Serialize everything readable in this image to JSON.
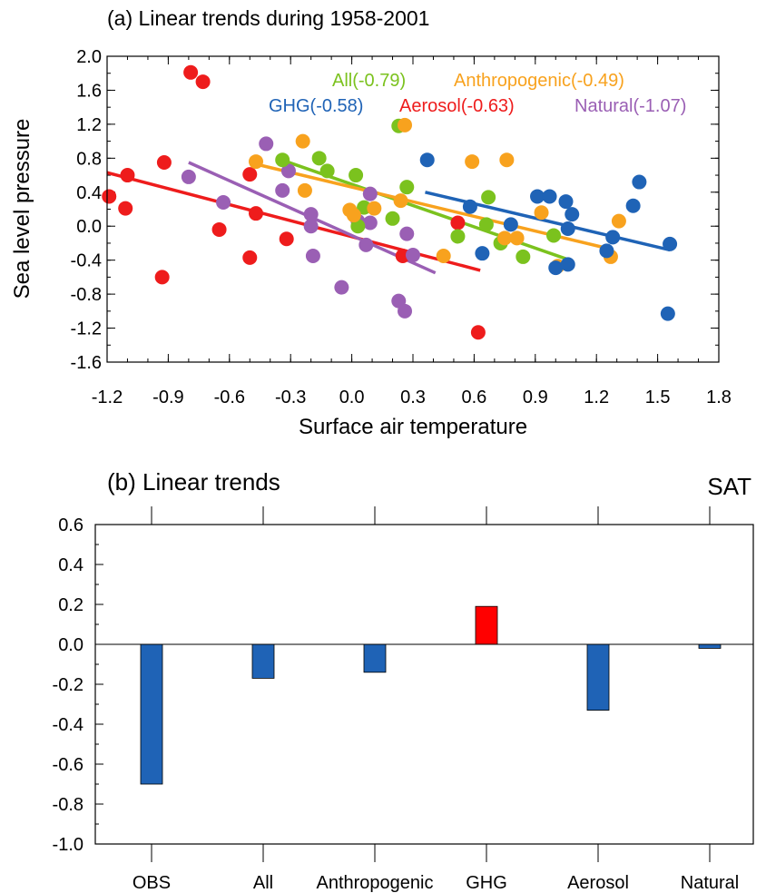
{
  "chart_data": [
    {
      "type": "scatter",
      "title": "(a) Linear trends during 1958-2001",
      "xlabel": "Surface air temperature",
      "ylabel": "Sea level pressure",
      "xlim": [
        -1.2,
        1.8
      ],
      "ylim": [
        -1.6,
        2.0
      ],
      "xticks": [
        "-1.2",
        "-0.9",
        "-0.6",
        "-0.3",
        "0.0",
        "0.3",
        "0.6",
        "0.9",
        "1.2",
        "1.5",
        "1.8"
      ],
      "yticks": [
        "2.0",
        "1.6",
        "1.2",
        "0.8",
        "0.4",
        "0.0",
        "-0.4",
        "-0.8",
        "-1.2",
        "-1.6"
      ],
      "grid": false,
      "legend": "in-plot labels, top",
      "series": [
        {
          "name": "Aerosol",
          "label": "Aerosol(-0.63)",
          "color": "#ee1c1c",
          "points": [
            [
              -1.19,
              0.35
            ],
            [
              -1.11,
              0.21
            ],
            [
              -1.1,
              0.6
            ],
            [
              -0.93,
              -0.6
            ],
            [
              -0.92,
              0.75
            ],
            [
              -0.79,
              1.81
            ],
            [
              -0.73,
              1.7
            ],
            [
              -0.65,
              -0.04
            ],
            [
              -0.5,
              0.61
            ],
            [
              -0.5,
              -0.37
            ],
            [
              -0.47,
              0.15
            ],
            [
              -0.32,
              -0.15
            ],
            [
              0.25,
              -0.35
            ],
            [
              0.52,
              0.04
            ],
            [
              0.62,
              -1.25
            ]
          ],
          "trend": [
            [
              -1.2,
              0.63
            ],
            [
              0.63,
              -0.52
            ]
          ]
        },
        {
          "name": "Natural",
          "label": "Natural(-1.07)",
          "color": "#9a5fb4",
          "points": [
            [
              -0.8,
              0.58
            ],
            [
              -0.63,
              0.28
            ],
            [
              -0.42,
              0.97
            ],
            [
              -0.34,
              0.42
            ],
            [
              -0.31,
              0.65
            ],
            [
              -0.2,
              0.14
            ],
            [
              -0.2,
              0.0
            ],
            [
              -0.19,
              -0.35
            ],
            [
              -0.05,
              -0.72
            ],
            [
              0.03,
              0.06
            ],
            [
              0.07,
              -0.22
            ],
            [
              0.09,
              0.38
            ],
            [
              0.09,
              0.04
            ],
            [
              0.23,
              -0.88
            ],
            [
              0.26,
              -1.0
            ],
            [
              0.27,
              -0.09
            ],
            [
              0.3,
              -0.34
            ]
          ],
          "trend": [
            [
              -0.8,
              0.75
            ],
            [
              0.41,
              -0.55
            ]
          ]
        },
        {
          "name": "All",
          "label": "All(-0.79)",
          "color": "#7bc21e",
          "points": [
            [
              -0.34,
              0.78
            ],
            [
              -0.16,
              0.8
            ],
            [
              -0.12,
              0.65
            ],
            [
              0.02,
              0.6
            ],
            [
              0.03,
              0.0
            ],
            [
              0.06,
              0.22
            ],
            [
              0.2,
              0.09
            ],
            [
              0.23,
              1.18
            ],
            [
              0.27,
              0.46
            ],
            [
              0.52,
              -0.12
            ],
            [
              0.66,
              0.02
            ],
            [
              0.67,
              0.34
            ],
            [
              0.73,
              -0.2
            ],
            [
              0.84,
              -0.36
            ],
            [
              0.99,
              -0.11
            ]
          ],
          "trend": [
            [
              -0.32,
              0.76
            ],
            [
              1.07,
              -0.4
            ]
          ]
        },
        {
          "name": "Anthropogenic",
          "label": "Anthropogenic(-0.49)",
          "color": "#f8a21e",
          "points": [
            [
              -0.47,
              0.76
            ],
            [
              -0.24,
              1.0
            ],
            [
              -0.23,
              0.42
            ],
            [
              -0.01,
              0.19
            ],
            [
              0.01,
              0.13
            ],
            [
              0.11,
              0.21
            ],
            [
              0.24,
              0.3
            ],
            [
              0.26,
              1.19
            ],
            [
              0.45,
              -0.35
            ],
            [
              0.59,
              0.76
            ],
            [
              0.75,
              -0.14
            ],
            [
              0.76,
              0.78
            ],
            [
              0.81,
              -0.14
            ],
            [
              0.93,
              0.16
            ],
            [
              1.01,
              -0.47
            ],
            [
              1.27,
              -0.36
            ],
            [
              1.31,
              0.06
            ]
          ],
          "trend": [
            [
              -0.47,
              0.73
            ],
            [
              1.27,
              -0.27
            ]
          ]
        },
        {
          "name": "GHG",
          "label": "GHG(-0.58)",
          "color": "#1f63b6",
          "points": [
            [
              0.37,
              0.78
            ],
            [
              0.58,
              0.23
            ],
            [
              0.64,
              -0.32
            ],
            [
              0.78,
              0.02
            ],
            [
              0.91,
              0.35
            ],
            [
              0.97,
              0.35
            ],
            [
              1.0,
              -0.49
            ],
            [
              1.05,
              0.29
            ],
            [
              1.06,
              -0.45
            ],
            [
              1.06,
              -0.03
            ],
            [
              1.08,
              0.14
            ],
            [
              1.25,
              -0.29
            ],
            [
              1.38,
              0.24
            ],
            [
              1.28,
              -0.13
            ],
            [
              1.41,
              0.52
            ],
            [
              1.55,
              -1.03
            ],
            [
              1.56,
              -0.21
            ]
          ],
          "trend": [
            [
              0.36,
              0.4
            ],
            [
              1.56,
              -0.28
            ]
          ]
        }
      ]
    },
    {
      "type": "bar",
      "title": "(b) Linear trends",
      "corner_label": "SAT",
      "categories": [
        "OBS",
        "All",
        "Anthropogenic",
        "GHG",
        "Aerosol",
        "Natural"
      ],
      "values": [
        -0.7,
        -0.17,
        -0.14,
        0.19,
        -0.33,
        -0.02
      ],
      "bar_colors": [
        "#1f63b6",
        "#1f63b6",
        "#1f63b6",
        "#ff0000",
        "#1f63b6",
        "#1f63b6"
      ],
      "ylim": [
        -1.0,
        0.6
      ],
      "yticks": [
        "0.6",
        "0.4",
        "0.2",
        "0.0",
        "-0.2",
        "-0.4",
        "-0.6",
        "-0.8",
        "-1.0"
      ],
      "grid": false
    }
  ]
}
